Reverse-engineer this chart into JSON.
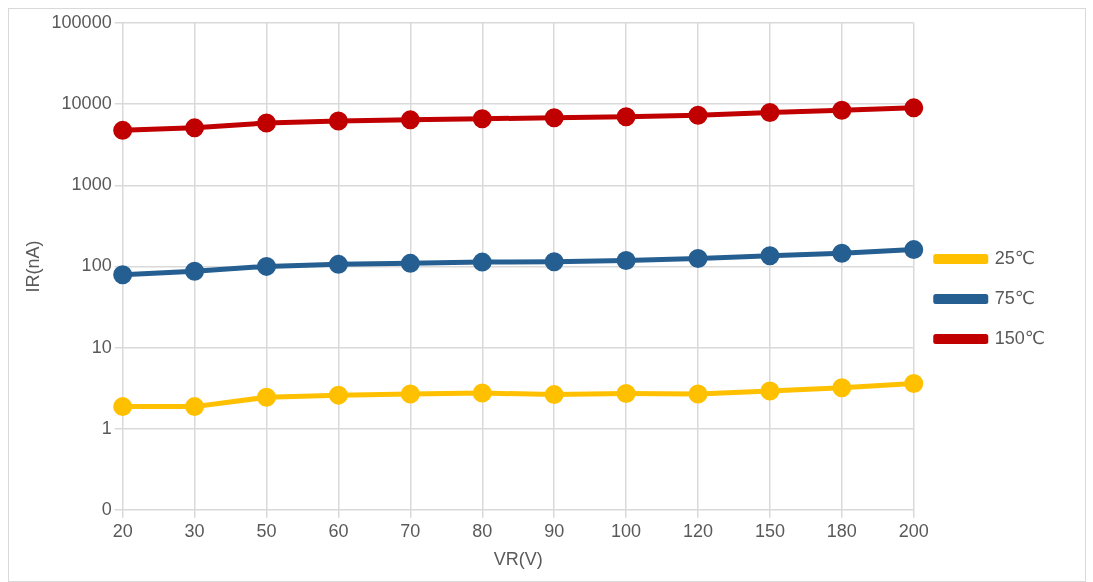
{
  "chart_data": {
    "type": "line",
    "xlabel": "VR(V)",
    "ylabel": "IR(nA)",
    "categories": [
      "20",
      "30",
      "50",
      "60",
      "70",
      "80",
      "90",
      "100",
      "120",
      "150",
      "180",
      "200"
    ],
    "series": [
      {
        "name": "25℃",
        "color": "#ffc000",
        "values": [
          1.87,
          1.87,
          2.44,
          2.59,
          2.67,
          2.75,
          2.63,
          2.71,
          2.67,
          2.92,
          3.2,
          3.6
        ]
      },
      {
        "name": "75℃",
        "color": "#255e91",
        "values": [
          79,
          87,
          100,
          106,
          109,
          113,
          114,
          118,
          125,
          135,
          145,
          161
        ]
      },
      {
        "name": "150℃",
        "color": "#c00000",
        "values": [
          4750,
          5100,
          5850,
          6200,
          6400,
          6600,
          6800,
          7000,
          7300,
          7900,
          8400,
          9000
        ]
      }
    ],
    "log": "y",
    "ylim": [
      0.1,
      100000
    ],
    "yticks": [
      {
        "value": 0.1,
        "label": "0"
      },
      1,
      10,
      100,
      1000,
      10000,
      100000
    ],
    "grid": true,
    "legend": "right",
    "marker": "circle",
    "line_style": "solid"
  }
}
